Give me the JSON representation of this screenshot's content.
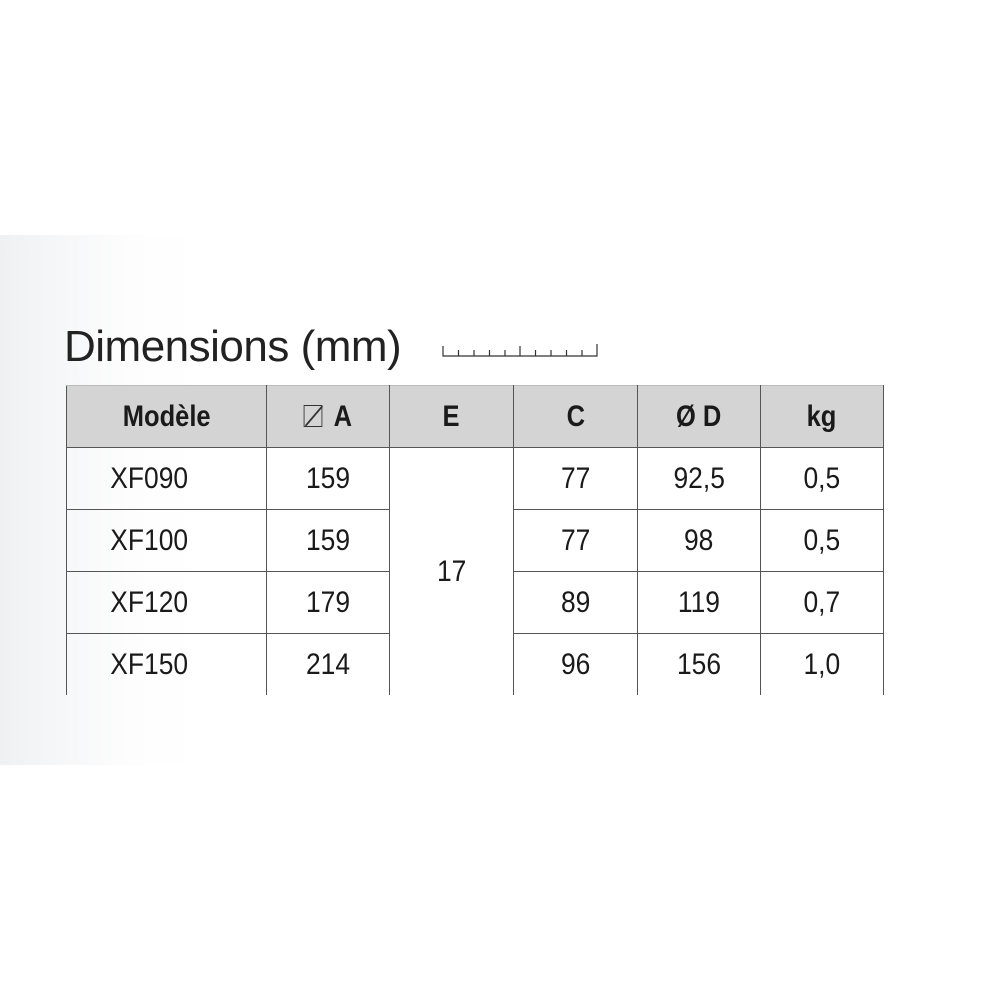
{
  "title": "Dimensions (mm)",
  "icons": {
    "ruler": "ruler-icon",
    "square_symbol": "square-diagonal-icon"
  },
  "table": {
    "headers": [
      "Modèle",
      "A",
      "E",
      "C",
      "Ø D",
      "kg"
    ],
    "merged_E": "17",
    "rows": [
      {
        "model": "XF090",
        "A": "159",
        "C": "77",
        "D": "92,5",
        "kg": "0,5"
      },
      {
        "model": "XF100",
        "A": "159",
        "C": "77",
        "D": "98",
        "kg": "0,5"
      },
      {
        "model": "XF120",
        "A": "179",
        "C": "89",
        "D": "119",
        "kg": "0,7"
      },
      {
        "model": "XF150",
        "A": "214",
        "C": "96",
        "D": "156",
        "kg": "1,0"
      }
    ]
  }
}
